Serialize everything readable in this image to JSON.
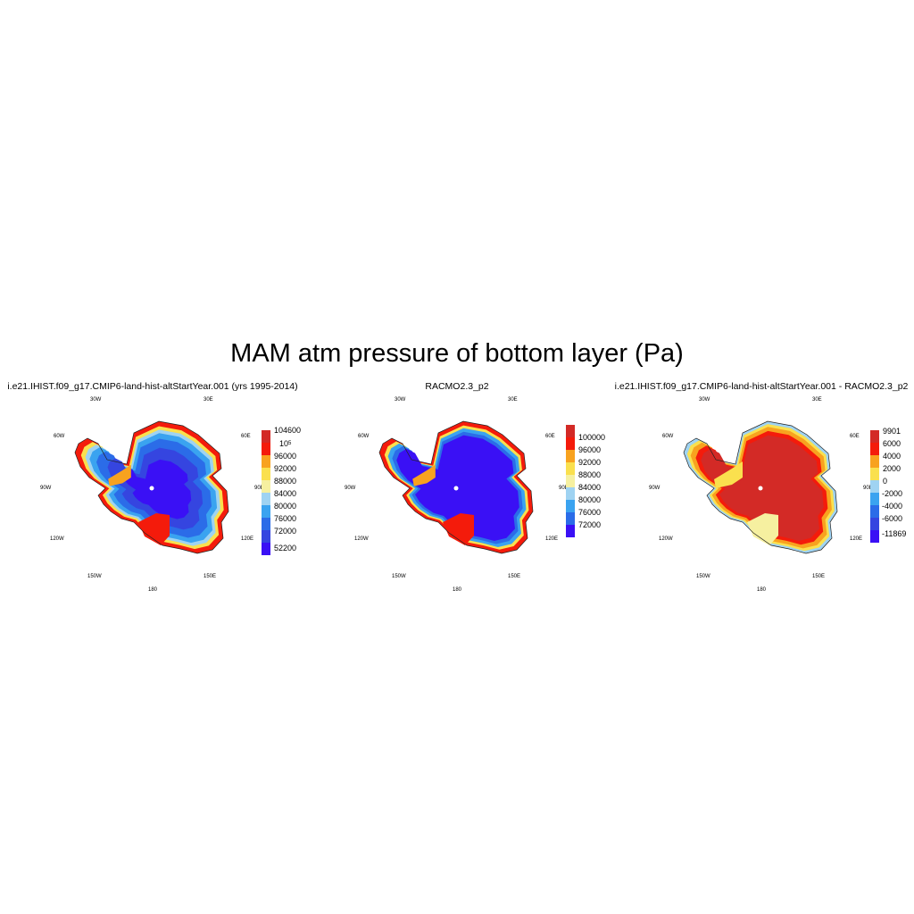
{
  "title": "MAM atm pressure of bottom layer (Pa)",
  "colors": {
    "darkred": "#d32a26",
    "red": "#f41b0b",
    "orange": "#f8a21f",
    "yellow": "#fae04e",
    "paleyellow": "#f6f0a0",
    "lightblue": "#9fd3f2",
    "skyblue": "#3aa3f0",
    "blue": "#2b6ce8",
    "indigo": "#3545e0",
    "violet": "#3a10f5"
  },
  "panels": [
    {
      "title": "i.e21.IHIST.f09_g17.CMIP6-land-hist-altStartYear.001 (yrs 1995-2014)",
      "lon_labels": [
        "30W",
        "30E",
        "60W",
        "60E",
        "90W",
        "90E",
        "120W",
        "120E",
        "150W",
        "150E",
        "180"
      ],
      "colorbar": {
        "labels": [
          "104600",
          "10^5",
          "96000",
          "92000",
          "88000",
          "84000",
          "80000",
          "76000",
          "72000",
          "52200"
        ],
        "colors": [
          "#d32a26",
          "#f41b0b",
          "#f8a21f",
          "#fae04e",
          "#f6f0a0",
          "#9fd3f2",
          "#3aa3f0",
          "#2b6ce8",
          "#3545e0",
          "#3a10f5"
        ]
      },
      "fill_pattern": "model"
    },
    {
      "title": "RACMO2.3_p2",
      "lon_labels": [
        "30W",
        "30E",
        "60W",
        "60E",
        "90W",
        "90E",
        "120W",
        "120E",
        "150W",
        "150E",
        "180"
      ],
      "colorbar": {
        "labels": [
          "100000",
          "96000",
          "92000",
          "88000",
          "84000",
          "80000",
          "76000",
          "72000"
        ],
        "colors": [
          "#d32a26",
          "#f41b0b",
          "#f8a21f",
          "#fae04e",
          "#f6f0a0",
          "#9fd3f2",
          "#3aa3f0",
          "#2b6ce8",
          "#3a10f5"
        ]
      },
      "fill_pattern": "obs"
    },
    {
      "title": "i.e21.IHIST.f09_g17.CMIP6-land-hist-altStartYear.001 - RACMO2.3_p2",
      "lon_labels": [
        "30W",
        "30E",
        "60W",
        "60E",
        "90W",
        "90E",
        "120W",
        "120E",
        "150W",
        "150E",
        "180"
      ],
      "colorbar": {
        "labels": [
          "9901",
          "6000",
          "4000",
          "2000",
          "0",
          "-2000",
          "-4000",
          "-6000",
          "-11869"
        ],
        "colors": [
          "#d32a26",
          "#f41b0b",
          "#f8a21f",
          "#fae04e",
          "#9fd3f2",
          "#3aa3f0",
          "#2b6ce8",
          "#3545e0",
          "#3a10f5"
        ]
      },
      "fill_pattern": "diff"
    }
  ]
}
